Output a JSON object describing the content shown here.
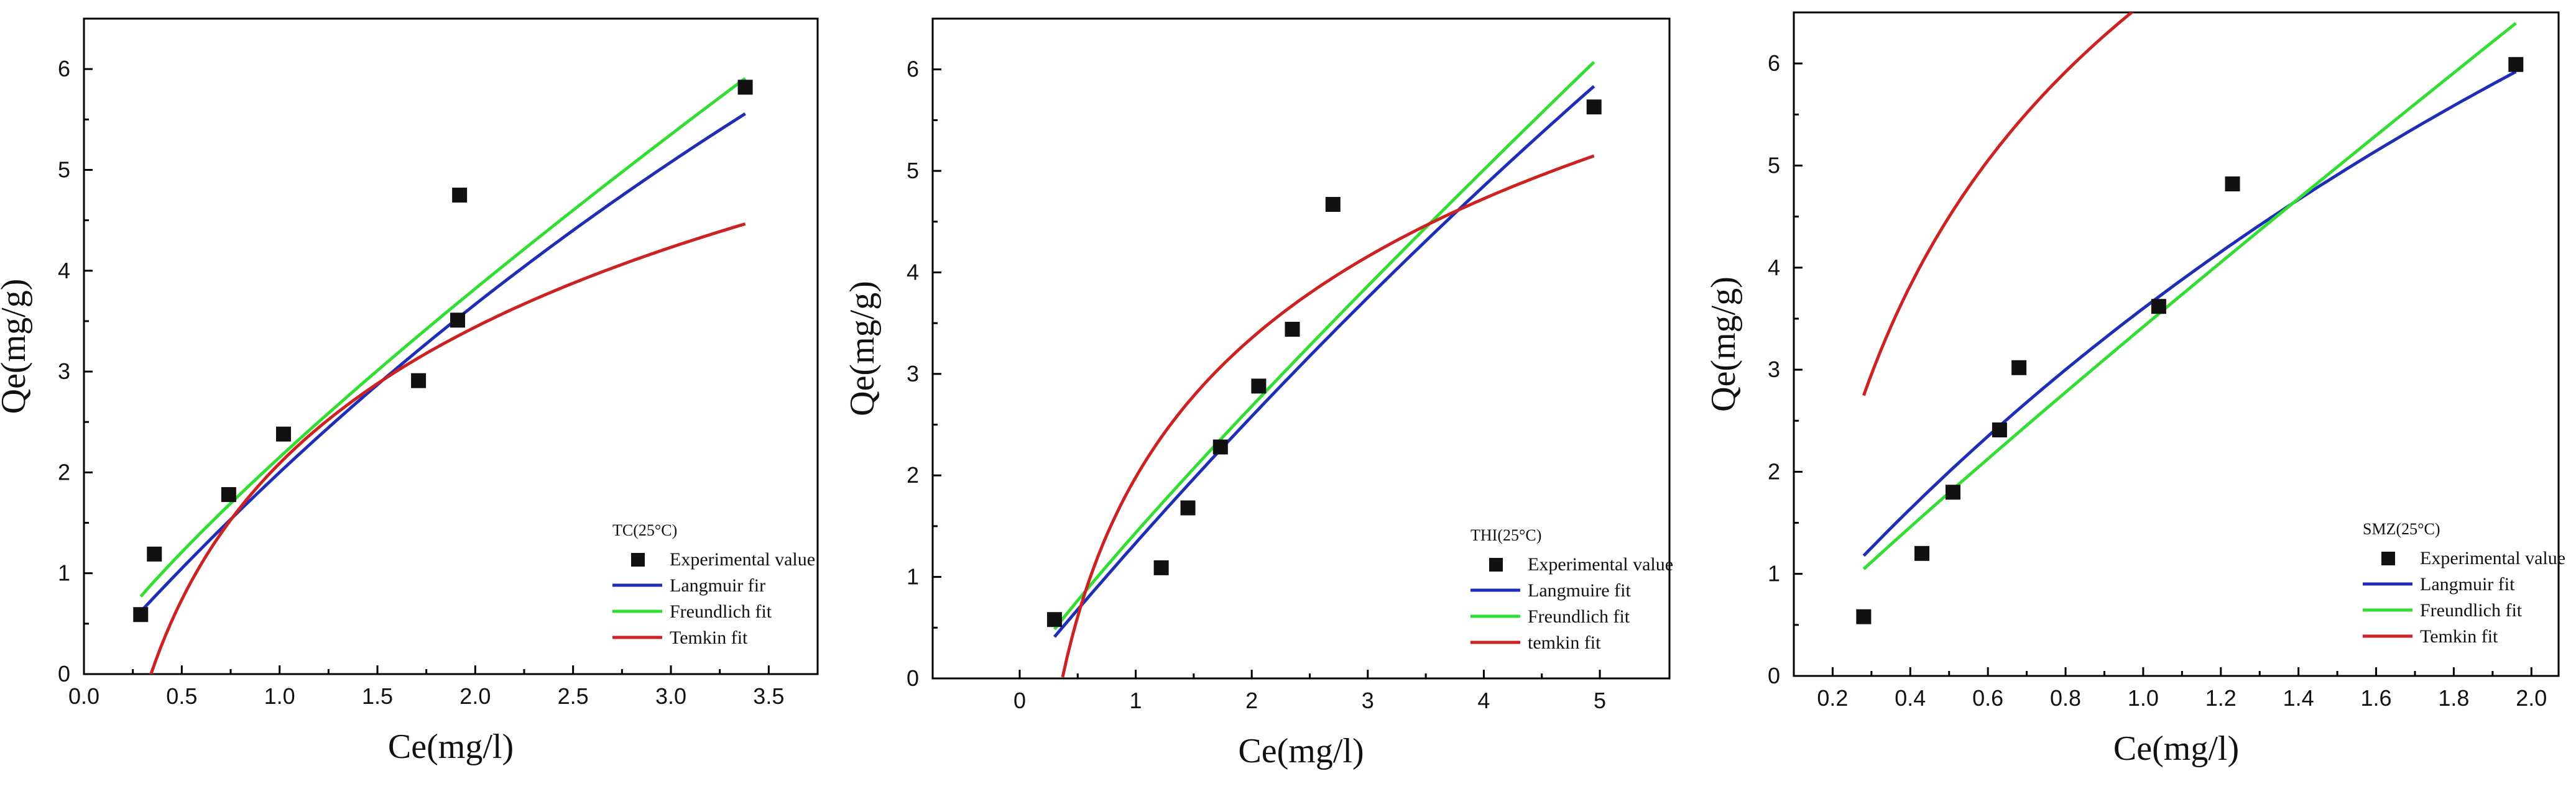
{
  "chart_data": [
    {
      "type": "scatter",
      "legend_title": "TC(25°C)",
      "legend_position": "bottom-right",
      "xlabel": "Ce(mg/l)",
      "ylabel": "Qe(mg/g)",
      "xlim": [
        0.0,
        3.75
      ],
      "ylim": [
        0,
        6.5
      ],
      "xticks": [
        "0.0",
        "0.5",
        "1.0",
        "1.5",
        "2.0",
        "2.5",
        "3.0",
        "3.5"
      ],
      "xtick_values": [
        0,
        0.5,
        1,
        1.5,
        2,
        2.5,
        3,
        3.5
      ],
      "yticks": [
        "0",
        "1",
        "2",
        "3",
        "4",
        "5",
        "6"
      ],
      "ytick_values": [
        0,
        1,
        2,
        3,
        4,
        5,
        6
      ],
      "points": {
        "name": "Experimental value",
        "x": [
          0.29,
          0.36,
          0.74,
          1.02,
          1.71,
          1.91,
          1.92,
          3.38
        ],
        "y": [
          0.59,
          1.19,
          1.78,
          2.38,
          2.91,
          3.51,
          4.75,
          5.82
        ]
      },
      "series": [
        {
          "name": "Langmuir fir",
          "color": "#1f2fb5",
          "model": "langmuir",
          "params": [
            22.0,
            0.1
          ],
          "xrange": [
            0.29,
            3.38
          ]
        },
        {
          "name": "Freundlich fit",
          "color": "#33dd33",
          "model": "freundlich",
          "params": [
            2.15,
            0.83
          ],
          "xrange": [
            0.29,
            3.38
          ]
        },
        {
          "name": "Temkin fit",
          "color": "#cc2222",
          "model": "temkin",
          "params": [
            1.95,
            2.92
          ],
          "xrange": [
            0.29,
            3.38
          ]
        }
      ]
    },
    {
      "type": "scatter",
      "legend_title": "THI(25°C)",
      "legend_position": "bottom-right",
      "xlabel": "Ce(mg/l)",
      "ylabel": "Qe(mg/g)",
      "xlim": [
        -0.75,
        5.6
      ],
      "ylim": [
        0,
        6.5
      ],
      "xticks": [
        "0",
        "1",
        "2",
        "3",
        "4",
        "5"
      ],
      "xtick_values": [
        0,
        1,
        2,
        3,
        4,
        5
      ],
      "yticks": [
        "0",
        "1",
        "2",
        "3",
        "4",
        "5",
        "6"
      ],
      "ytick_values": [
        0,
        1,
        2,
        3,
        4,
        5,
        6
      ],
      "points": {
        "name": "Experimental value",
        "x": [
          0.3,
          1.22,
          1.45,
          1.73,
          2.06,
          2.35,
          2.7,
          4.95
        ],
        "y": [
          0.58,
          1.09,
          1.68,
          2.28,
          2.88,
          3.44,
          4.67,
          5.63
        ]
      },
      "series": [
        {
          "name": "Langmuire fit",
          "color": "#1f2fb5",
          "model": "langmuir",
          "params": [
            40.0,
            0.0345
          ],
          "xrange": [
            0.3,
            4.95
          ]
        },
        {
          "name": "Freundlich fit",
          "color": "#33dd33",
          "model": "freundlich",
          "params": [
            1.435,
            0.902
          ],
          "xrange": [
            0.3,
            4.95
          ]
        },
        {
          "name": "temkin fit",
          "color": "#cc2222",
          "model": "temkin",
          "params": [
            1.98,
            2.72
          ],
          "xrange": [
            0.37,
            4.95
          ]
        }
      ]
    },
    {
      "type": "scatter",
      "legend_title": "SMZ(25°C)",
      "legend_position": "bottom-right",
      "xlabel": "Ce(mg/l)",
      "ylabel": "Qe(mg/g)",
      "xlim": [
        0.1,
        2.07
      ],
      "ylim": [
        0,
        6.5
      ],
      "xticks": [
        "0.2",
        "0.4",
        "0.6",
        "0.8",
        "1.0",
        "1.2",
        "1.4",
        "1.6",
        "1.8",
        "2.0"
      ],
      "xtick_values": [
        0.2,
        0.4,
        0.6,
        0.8,
        1.0,
        1.2,
        1.4,
        1.6,
        1.8,
        2.0
      ],
      "yticks": [
        "0",
        "1",
        "2",
        "3",
        "4",
        "5",
        "6"
      ],
      "ytick_values": [
        0,
        1,
        2,
        3,
        4,
        5,
        6
      ],
      "points": {
        "name": "Experimental value",
        "x": [
          0.28,
          0.43,
          0.51,
          0.63,
          0.68,
          1.04,
          1.23,
          1.96
        ],
        "y": [
          0.58,
          1.2,
          1.8,
          2.41,
          3.02,
          3.62,
          4.82,
          5.99
        ]
      },
      "series": [
        {
          "name": "Langmuir fit",
          "color": "#1f2fb5",
          "model": "langmuir",
          "params": [
            18.0,
            0.25
          ],
          "xrange": [
            0.28,
            1.96
          ]
        },
        {
          "name": "Freundlich fit",
          "color": "#33dd33",
          "model": "freundlich",
          "params": [
            3.42,
            0.93
          ],
          "xrange": [
            0.28,
            1.96
          ]
        },
        {
          "name": "Temkin fit",
          "color": "#cc2222",
          "model": "temkin",
          "params": [
            3.02,
            8.87
          ],
          "xrange": [
            0.28,
            1.96
          ]
        }
      ]
    }
  ]
}
